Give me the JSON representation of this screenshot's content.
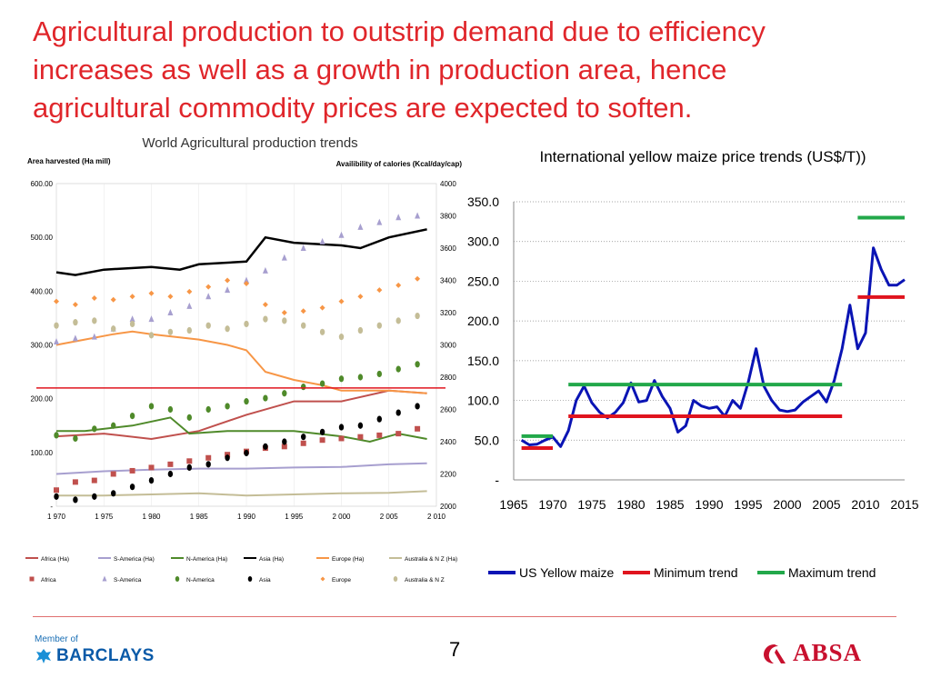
{
  "slide": {
    "title_lines": [
      "Agricultural production to outstrip demand due to efficiency",
      "increases as well as a growth in production area, hence",
      "agricultural commodity prices are expected to soften."
    ],
    "page_number": "7",
    "title_color": "#e0262b"
  },
  "logos": {
    "barclays_member": "Member of",
    "barclays_name": "BARCLAYS",
    "absa_name": "ABSA",
    "barclays_icon": "eagle-icon",
    "absa_icon": "absa-symbol-icon"
  },
  "chart_data": [
    {
      "type": "line",
      "title": "World Agricultural production trends",
      "ylabel_left": "Area harvested (Ha  mill)",
      "ylabel_right": "Availibility of calories (Kcal/day/cap)",
      "xlim": [
        1970,
        2010
      ],
      "ylim_left": [
        0,
        600
      ],
      "ylim_right": [
        2000,
        4000
      ],
      "x_ticks": [
        "1 970",
        "1 975",
        "1 980",
        "1 985",
        "1 990",
        "1 995",
        "2 000",
        "2 005",
        "2 010"
      ],
      "y_ticks_left": [
        "-",
        "100.00",
        "200.00",
        "300.00",
        "400.00",
        "500.00",
        "600.00"
      ],
      "y_ticks_right": [
        "2000",
        "2200",
        "2400",
        "2600",
        "2800",
        "3000",
        "3200",
        "3400",
        "3600",
        "3800",
        "4000"
      ],
      "reference_line_left": 220,
      "legend_lines": [
        {
          "name": "Africa (Ha)",
          "color": "#c0504d"
        },
        {
          "name": "S-America (Ha)",
          "color": "#a79fcf"
        },
        {
          "name": "N-America (Ha)",
          "color": "#4f8a2a"
        },
        {
          "name": "Asia (Ha)",
          "color": "#000000"
        },
        {
          "name": "Europe (Ha)",
          "color": "#f79646"
        },
        {
          "name": "Australia & N Z (Ha)",
          "color": "#c4bd97"
        }
      ],
      "legend_markers": [
        {
          "name": "Africa",
          "color": "#c0504d",
          "shape": "square"
        },
        {
          "name": "S-America",
          "color": "#a79fcf",
          "shape": "triangle"
        },
        {
          "name": "N-America",
          "color": "#4f8a2a",
          "shape": "circle"
        },
        {
          "name": "Asia",
          "color": "#000000",
          "shape": "circle"
        },
        {
          "name": "Europe",
          "color": "#f79646",
          "shape": "diamond"
        },
        {
          "name": "Australia & N Z",
          "color": "#c4bd97",
          "shape": "circle"
        }
      ],
      "series_lines": [
        {
          "name": "Africa (Ha)",
          "axis": "left",
          "x": [
            1970,
            1975,
            1980,
            1985,
            1990,
            1995,
            2000,
            2005,
            2009
          ],
          "values": [
            130,
            135,
            125,
            140,
            170,
            195,
            195,
            215,
            210
          ]
        },
        {
          "name": "S-America (Ha)",
          "axis": "left",
          "x": [
            1970,
            1975,
            1980,
            1985,
            1990,
            1995,
            2000,
            2005,
            2009
          ],
          "values": [
            60,
            65,
            68,
            70,
            70,
            72,
            73,
            78,
            80
          ]
        },
        {
          "name": "N-America (Ha)",
          "axis": "left",
          "x": [
            1970,
            1973,
            1978,
            1982,
            1984,
            1988,
            1990,
            1995,
            2000,
            2003,
            2006,
            2009
          ],
          "values": [
            140,
            140,
            150,
            165,
            135,
            140,
            140,
            140,
            130,
            120,
            135,
            125
          ]
        },
        {
          "name": "Asia (Ha)",
          "axis": "left",
          "x": [
            1970,
            1972,
            1975,
            1980,
            1983,
            1985,
            1990,
            1992,
            1995,
            2000,
            2002,
            2005,
            2009
          ],
          "values": [
            435,
            430,
            440,
            445,
            440,
            450,
            455,
            500,
            490,
            485,
            480,
            500,
            515
          ]
        },
        {
          "name": "Europe (Ha)",
          "axis": "left",
          "x": [
            1970,
            1973,
            1976,
            1978,
            1980,
            1985,
            1988,
            1990,
            1992,
            1995,
            1998,
            2000,
            2005,
            2009
          ],
          "values": [
            300,
            310,
            320,
            325,
            320,
            310,
            300,
            290,
            250,
            235,
            225,
            215,
            215,
            210
          ]
        },
        {
          "name": "Australia & N Z (Ha)",
          "axis": "left",
          "x": [
            1970,
            1975,
            1980,
            1985,
            1990,
            1995,
            2000,
            2005,
            2009
          ],
          "values": [
            20,
            20,
            22,
            24,
            20,
            22,
            24,
            25,
            28
          ]
        }
      ],
      "series_markers": [
        {
          "name": "Africa",
          "axis": "right",
          "x": [
            1970,
            1972,
            1974,
            1976,
            1978,
            1980,
            1982,
            1984,
            1986,
            1988,
            1990,
            1992,
            1994,
            1996,
            1998,
            2000,
            2002,
            2004,
            2006,
            2008
          ],
          "values": [
            2100,
            2150,
            2160,
            2200,
            2220,
            2240,
            2260,
            2280,
            2300,
            2320,
            2340,
            2360,
            2370,
            2390,
            2410,
            2420,
            2430,
            2440,
            2450,
            2480
          ]
        },
        {
          "name": "S-America",
          "axis": "right",
          "x": [
            1970,
            1972,
            1974,
            1976,
            1978,
            1980,
            1982,
            1984,
            1986,
            1988,
            1990,
            1992,
            1994,
            1996,
            1998,
            2000,
            2002,
            2004,
            2006,
            2008
          ],
          "values": [
            3020,
            3040,
            3050,
            3100,
            3160,
            3160,
            3200,
            3240,
            3300,
            3340,
            3400,
            3460,
            3540,
            3600,
            3640,
            3680,
            3730,
            3760,
            3790,
            3800
          ]
        },
        {
          "name": "N-America",
          "axis": "right",
          "x": [
            1970,
            1972,
            1974,
            1976,
            1978,
            1980,
            1982,
            1984,
            1986,
            1988,
            1990,
            1992,
            1994,
            1996,
            1998,
            2000,
            2002,
            2004,
            2006,
            2008
          ],
          "values": [
            2440,
            2420,
            2480,
            2500,
            2560,
            2620,
            2600,
            2550,
            2600,
            2620,
            2650,
            2670,
            2700,
            2740,
            2760,
            2790,
            2800,
            2820,
            2850,
            2880
          ]
        },
        {
          "name": "Asia",
          "axis": "right",
          "x": [
            1970,
            1972,
            1974,
            1976,
            1978,
            1980,
            1982,
            1984,
            1986,
            1988,
            1990,
            1992,
            1994,
            1996,
            1998,
            2000,
            2002,
            2004,
            2006,
            2008
          ],
          "values": [
            2060,
            2040,
            2060,
            2080,
            2120,
            2160,
            2200,
            2240,
            2260,
            2300,
            2330,
            2370,
            2400,
            2430,
            2460,
            2490,
            2500,
            2540,
            2580,
            2620
          ]
        },
        {
          "name": "Europe",
          "axis": "right",
          "x": [
            1970,
            1972,
            1974,
            1976,
            1978,
            1980,
            1982,
            1984,
            1986,
            1988,
            1990,
            1992,
            1994,
            1996,
            1998,
            2000,
            2002,
            2004,
            2006,
            2008
          ],
          "values": [
            3270,
            3250,
            3290,
            3280,
            3300,
            3320,
            3300,
            3330,
            3360,
            3400,
            3380,
            3250,
            3200,
            3210,
            3230,
            3270,
            3300,
            3340,
            3370,
            3410
          ]
        },
        {
          "name": "Australia & N Z",
          "axis": "right",
          "x": [
            1970,
            1972,
            1974,
            1976,
            1978,
            1980,
            1982,
            1984,
            1986,
            1988,
            1990,
            1992,
            1994,
            1996,
            1998,
            2000,
            2002,
            2004,
            2006,
            2008
          ],
          "values": [
            3120,
            3140,
            3150,
            3100,
            3130,
            3060,
            3080,
            3090,
            3120,
            3100,
            3130,
            3160,
            3150,
            3120,
            3080,
            3050,
            3090,
            3120,
            3150,
            3180
          ]
        }
      ]
    },
    {
      "type": "line",
      "title": "International yellow maize price trends (US$/T))",
      "xlim": [
        1965,
        2015
      ],
      "ylim": [
        0,
        350
      ],
      "x_ticks": [
        "1965",
        "1970",
        "1975",
        "1980",
        "1985",
        "1990",
        "1995",
        "2000",
        "2005",
        "2010",
        "2015"
      ],
      "y_ticks": [
        "-",
        "50.0",
        "100.0",
        "150.0",
        "200.0",
        "250.0",
        "300.0",
        "350.0"
      ],
      "grid": true,
      "legend_placement": "bottom",
      "series": [
        {
          "name": "US Yellow maize",
          "color": "#0a14b4",
          "x": [
            1966,
            1967,
            1968,
            1969,
            1970,
            1971,
            1972,
            1973,
            1974,
            1975,
            1976,
            1977,
            1978,
            1979,
            1980,
            1981,
            1982,
            1983,
            1984,
            1985,
            1986,
            1987,
            1988,
            1989,
            1990,
            1991,
            1992,
            1993,
            1994,
            1995,
            1996,
            1997,
            1998,
            1999,
            2000,
            2001,
            2002,
            2003,
            2004,
            2005,
            2006,
            2007,
            2008,
            2009,
            2010,
            2011,
            2012,
            2013,
            2014,
            2015
          ],
          "values": [
            50,
            44,
            45,
            50,
            54,
            42,
            62,
            100,
            118,
            97,
            85,
            78,
            85,
            97,
            122,
            98,
            100,
            125,
            105,
            90,
            60,
            68,
            100,
            93,
            90,
            92,
            80,
            100,
            90,
            123,
            165,
            118,
            100,
            88,
            86,
            88,
            98,
            105,
            112,
            98,
            125,
            165,
            220,
            165,
            185,
            292,
            265,
            245,
            245,
            252
          ]
        },
        {
          "name": "Minimum trend",
          "color": "#e0141e",
          "segments": [
            {
              "x": [
                1966,
                1970
              ],
              "value": 40
            },
            {
              "x": [
                1972,
                2007
              ],
              "value": 80
            },
            {
              "x": [
                2009,
                2015
              ],
              "value": 230
            }
          ]
        },
        {
          "name": "Maximum trend",
          "color": "#22a84a",
          "segments": [
            {
              "x": [
                1966,
                1970
              ],
              "value": 55
            },
            {
              "x": [
                1972,
                2007
              ],
              "value": 120
            },
            {
              "x": [
                2009,
                2015
              ],
              "value": 330
            }
          ]
        }
      ]
    }
  ]
}
